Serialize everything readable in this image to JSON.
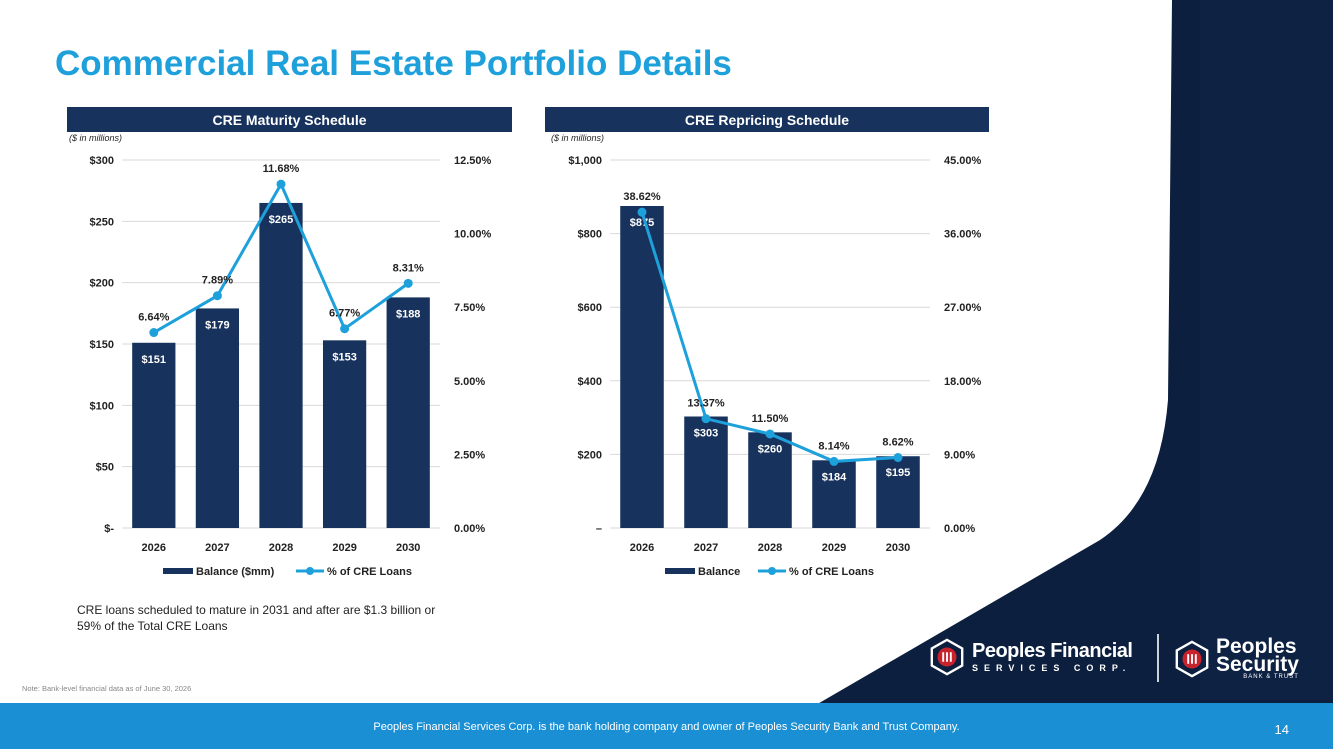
{
  "title": "Commercial Real Estate Portfolio Details",
  "colors": {
    "accent": "#1ea0db",
    "navy": "#17325c",
    "line": "#1ea0db",
    "footer": "#1a8fd4"
  },
  "chart_data": [
    {
      "type": "bar",
      "title": "CRE Maturity Schedule",
      "units_note": "($ in millions)",
      "categories": [
        "2026",
        "2027",
        "2028",
        "2029",
        "2030"
      ],
      "series": [
        {
          "name": "Balance ($mm)",
          "type": "bar",
          "axis": "left",
          "values": [
            151,
            179,
            265,
            153,
            188
          ],
          "labels": [
            "$151",
            "$179",
            "$265",
            "$153",
            "$188"
          ]
        },
        {
          "name": "% of CRE Loans",
          "type": "line",
          "axis": "right",
          "values": [
            6.64,
            7.89,
            11.68,
            6.77,
            8.31
          ],
          "labels": [
            "6.64%",
            "7.89%",
            "11.68%",
            "6.77%",
            "8.31%"
          ]
        }
      ],
      "ylim": [
        0,
        300
      ],
      "y_ticks": [
        "$-",
        "$50",
        "$100",
        "$150",
        "$200",
        "$250",
        "$300"
      ],
      "y2lim": [
        0,
        12.5
      ],
      "y2_ticks": [
        "0.00%",
        "2.50%",
        "5.00%",
        "7.50%",
        "10.00%",
        "12.50%"
      ],
      "grid": true,
      "legend": "bottom"
    },
    {
      "type": "bar",
      "title": "CRE Repricing Schedule",
      "units_note": "($ in millions)",
      "categories": [
        "2026",
        "2027",
        "2028",
        "2029",
        "2030"
      ],
      "series": [
        {
          "name": "Balance",
          "type": "bar",
          "axis": "left",
          "values": [
            875,
            303,
            260,
            184,
            195
          ],
          "labels": [
            "$875",
            "$303",
            "$260",
            "$184",
            "$195"
          ]
        },
        {
          "name": "% of CRE Loans",
          "type": "line",
          "axis": "right",
          "values": [
            38.62,
            13.37,
            11.5,
            8.14,
            8.62
          ],
          "labels": [
            "38.62%",
            "13.37%",
            "11.50%",
            "8.14%",
            "8.62%"
          ]
        }
      ],
      "ylim": [
        0,
        1000
      ],
      "y_ticks": [
        "–",
        "$200",
        "$400",
        "$600",
        "$800",
        "$1,000"
      ],
      "y2lim": [
        0,
        45
      ],
      "y2_ticks": [
        "0.00%",
        "9.00%",
        "18.00%",
        "27.00%",
        "36.00%",
        "45.00%"
      ],
      "grid": true,
      "legend": "bottom"
    }
  ],
  "note": "CRE loans scheduled to mature in 2031 and after are $1.3 billion or 59% of the Total CRE Loans",
  "footnote": "Note: Bank-level financial data as of June 30, 2026",
  "footer": "Peoples Financial Services Corp. is the bank holding company and owner of Peoples Security Bank and Trust Company.",
  "page_number": "14",
  "logos": {
    "pfsc_main": "Peoples Financial",
    "pfsc_sub": "SERVICES CORP.",
    "psb_main_1": "Peoples",
    "psb_main_2": "Security",
    "psb_sub": "BANK & TRUST"
  }
}
